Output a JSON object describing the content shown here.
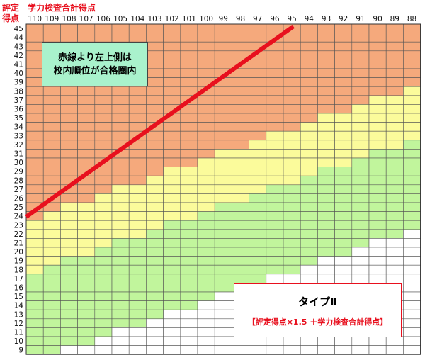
{
  "chart_data": {
    "type": "heatmap",
    "corner_label_top": "評定",
    "corner_label_bottom": "得点",
    "x_axis_title": "学力検査合計得点",
    "x_values": [
      110,
      109,
      108,
      107,
      106,
      105,
      104,
      103,
      102,
      101,
      100,
      99,
      98,
      97,
      96,
      95,
      94,
      93,
      92,
      91,
      90,
      89,
      88
    ],
    "y_values": [
      45,
      44,
      43,
      42,
      41,
      40,
      39,
      38,
      37,
      36,
      35,
      34,
      33,
      32,
      31,
      30,
      29,
      28,
      27,
      26,
      25,
      24,
      23,
      22,
      21,
      20,
      19,
      18,
      17,
      16,
      15,
      14,
      13,
      12,
      11,
      10,
      9
    ],
    "annotation": {
      "line1": "赤線より左上側は",
      "line2": "校内順位が合格圏内"
    },
    "type_box": {
      "title": "タイプⅡ",
      "formula": "【評定得点×1.5 ＋学力検査合計得点】"
    },
    "threshold_line": {
      "from": {
        "x": 110,
        "y": 24
      },
      "to": {
        "x": 94,
        "y": 45
      }
    },
    "band_boundaries": {
      "orange_min_sum": 146,
      "yellow_min_sum": 137,
      "green_min_sum": 122
    },
    "colors": {
      "orange": "#f5a97c",
      "yellow": "#fbfb9b",
      "green": "#c1f59c",
      "white": "#ffffff",
      "line": "#e8101e",
      "grid": "#555555",
      "axis_label": "#e8101e"
    }
  }
}
